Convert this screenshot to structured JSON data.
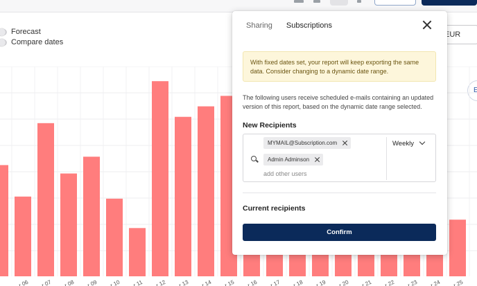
{
  "options": {
    "forecast_label": "Forecast",
    "compare_label": "Compare dates"
  },
  "currency": "EUR",
  "side_tab_label": "EU",
  "chart_data": {
    "type": "bar",
    "color": "#ff7d7d",
    "categories": [
      "",
      "06",
      "07",
      "08",
      "09",
      "10",
      "11",
      "12",
      "13",
      "14",
      "15",
      "16",
      "17",
      "18",
      "19",
      "20",
      "21",
      "22",
      "23",
      "24",
      "25"
    ],
    "tick_labels": [
      "",
      "..r 06",
      "..r 07",
      "..r 08",
      "..r 09",
      "..r 10",
      "..r 11",
      "..r 12",
      "..r 13",
      "..r 14",
      "..r 15",
      "..r 16",
      "..r 17",
      "..r 18",
      "..r 19",
      "..r 20",
      "..r 21",
      "..r 22",
      "..r 23",
      "..r 24",
      "..r 25"
    ],
    "values": [
      5.3,
      3.8,
      7.3,
      4.9,
      5.7,
      3.7,
      2.3,
      9.3,
      7.6,
      8.1,
      8.6,
      1.6,
      2.0,
      1.7,
      2.2,
      1.9,
      1.5,
      1.8,
      2.4,
      1.6,
      2.7
    ],
    "ylim": [
      0,
      10
    ],
    "grid": true
  },
  "dialog": {
    "tabs": [
      {
        "label": "Sharing",
        "active": false
      },
      {
        "label": "Subscriptions",
        "active": true
      }
    ],
    "notice": "With fixed dates set, your report will keep exporting the same data. Consider changing to a dynamic date range.",
    "description": "The following users receive scheduled e-mails containing an updated version of this report, based on the dynamic date range selected.",
    "new_recipients_title": "New Recipients",
    "recipients": [
      "MYMAIL@Subscription.com",
      "Admin Adminson"
    ],
    "add_placeholder": "add other users",
    "frequency": "Weekly",
    "current_recipients_title": "Current recipients",
    "confirm_label": "Confirm"
  }
}
